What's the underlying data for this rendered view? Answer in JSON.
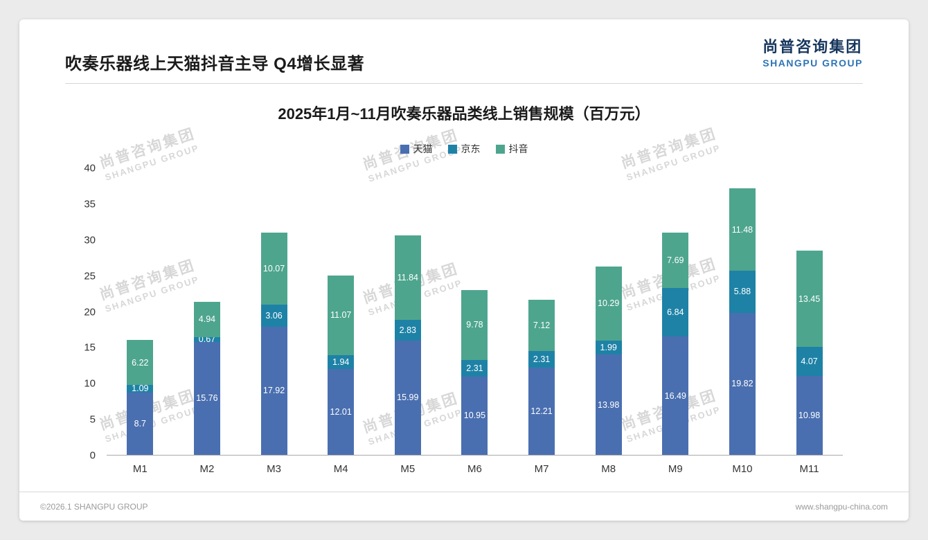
{
  "header": {
    "title": "吹奏乐器线上天猫抖音主导 Q4增长显著",
    "logo_cn": "尚普咨询集团",
    "logo_en": "SHANGPU GROUP"
  },
  "watermark": {
    "cn": "尚普咨询集团",
    "en": "SHANGPU GROUP"
  },
  "footer": {
    "left": "©2026.1 SHANGPU GROUP",
    "right": "www.shangpu-china.com"
  },
  "chart_data": {
    "type": "bar",
    "stacked": true,
    "title": "2025年1月~11月吹奏乐器品类线上销售规模（百万元）",
    "categories": [
      "M1",
      "M2",
      "M3",
      "M4",
      "M5",
      "M6",
      "M7",
      "M8",
      "M9",
      "M10",
      "M11"
    ],
    "series": [
      {
        "name": "天猫",
        "color": "#4a6fb0",
        "values": [
          8.7,
          15.76,
          17.92,
          12.01,
          15.99,
          10.95,
          12.21,
          13.98,
          16.49,
          19.82,
          10.98
        ]
      },
      {
        "name": "京东",
        "color": "#1e82a6",
        "values": [
          1.09,
          0.67,
          3.06,
          1.94,
          2.83,
          2.31,
          2.31,
          1.99,
          6.84,
          5.88,
          4.07
        ]
      },
      {
        "name": "抖音",
        "color": "#4ea58e",
        "values": [
          6.22,
          4.94,
          10.07,
          11.07,
          11.84,
          9.78,
          7.12,
          10.29,
          7.69,
          11.48,
          13.45
        ]
      }
    ],
    "ylim": [
      0,
      40
    ],
    "ytick_step": 5,
    "xlabel": "",
    "ylabel": "",
    "legend_position": "top",
    "grid": false
  }
}
